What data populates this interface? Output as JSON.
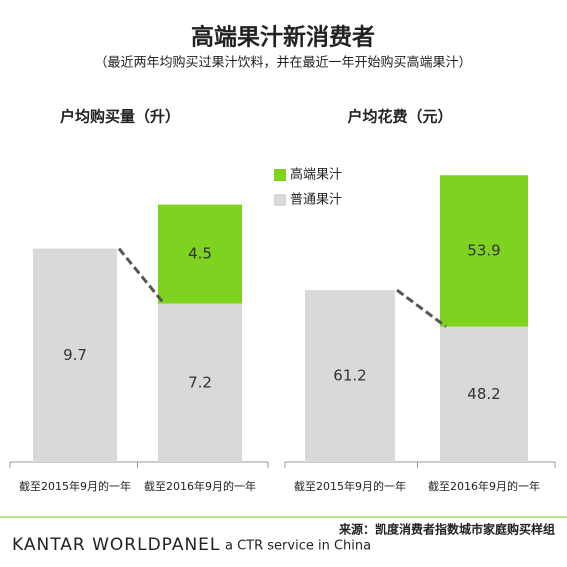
{
  "title": "高端果汁新消费者",
  "subtitle": "（最近两年均购买过果汁饮料，并在最近一年开始购买高端果汁）",
  "chart_data": [
    {
      "type": "bar",
      "title": "户均购买量（升）",
      "categories": [
        "截至2015年9月的一年",
        "截至2016年9月的一年"
      ],
      "series": [
        {
          "color": "#d9d9d9",
          "values": [
            9.7,
            7.2
          ]
        },
        {
          "color": "#7ed321",
          "values": [
            null,
            4.5
          ]
        }
      ],
      "ylim": [
        0,
        12
      ]
    },
    {
      "type": "bar",
      "title": "户均花费（元）",
      "categories": [
        "截至2015年9月的一年",
        "截至2016年9月的一年"
      ],
      "series": [
        {
          "name": "普通果汁",
          "color": "#d9d9d9",
          "values": [
            61.2,
            48.2
          ]
        },
        {
          "name": "高端果汁",
          "color": "#7ed321",
          "values": [
            null,
            53.9
          ]
        }
      ],
      "ylim": [
        0,
        94
      ]
    }
  ],
  "source": "来源：凯度消费者指数城市家庭购买样组",
  "brand": "KANTAR WORLDPANEL",
  "tagline": "a CTR service in China"
}
